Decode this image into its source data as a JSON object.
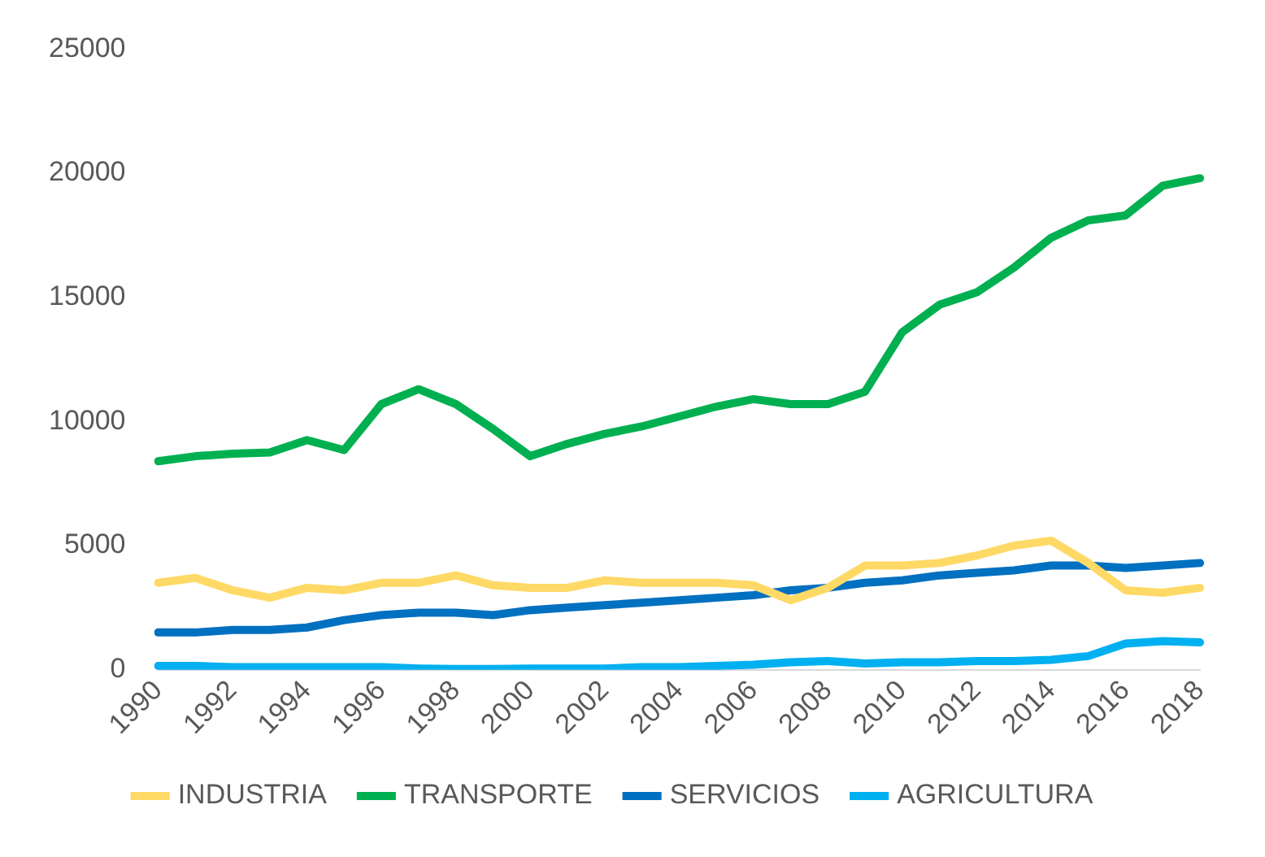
{
  "chart_data": {
    "type": "line",
    "categories": [
      "1990",
      null,
      "1992",
      null,
      "1994",
      null,
      "1996",
      null,
      "1998",
      null,
      "2000",
      null,
      "2002",
      null,
      "2004",
      null,
      "2006",
      null,
      "2008",
      null,
      "2010",
      null,
      "2012",
      null,
      "2014",
      null,
      "2016",
      null,
      "2018"
    ],
    "series": [
      {
        "name": "INDUSTRIA",
        "color": "#ffd966",
        "values": [
          3500,
          3700,
          3200,
          2900,
          3300,
          3200,
          3500,
          3500,
          3800,
          3400,
          3300,
          3300,
          3600,
          3500,
          3500,
          3500,
          3400,
          2800,
          3300,
          4200,
          4200,
          4300,
          4600,
          5000,
          5200,
          4300,
          3200,
          3100,
          3300
        ]
      },
      {
        "name": "TRANSPORTE",
        "color": "#00b050",
        "values": [
          8400,
          8600,
          8700,
          8750,
          9250,
          8850,
          10700,
          11300,
          10700,
          9700,
          8600,
          9100,
          9500,
          9800,
          10200,
          10600,
          10900,
          10700,
          10700,
          11200,
          13600,
          14700,
          15200,
          16200,
          17400,
          18100,
          18300,
          19500,
          19800
        ]
      },
      {
        "name": "SERVICIOS",
        "color": "#0070c0",
        "values": [
          1500,
          1500,
          1600,
          1600,
          1700,
          2000,
          2200,
          2300,
          2300,
          2200,
          2400,
          2500,
          2600,
          2700,
          2800,
          2900,
          3000,
          3200,
          3300,
          3500,
          3600,
          3800,
          3900,
          4000,
          4200,
          4200,
          4100,
          4200,
          4300
        ]
      },
      {
        "name": "AGRICULTURA",
        "color": "#00b0f0",
        "values": [
          150,
          150,
          100,
          100,
          100,
          100,
          100,
          50,
          30,
          30,
          50,
          50,
          50,
          100,
          100,
          150,
          200,
          300,
          350,
          250,
          300,
          300,
          350,
          350,
          400,
          550,
          1050,
          1150,
          1100
        ]
      }
    ],
    "ylim": [
      0,
      25000
    ],
    "yticks": [
      0,
      5000,
      10000,
      15000,
      20000,
      25000
    ],
    "grid": false,
    "legend": "bottom",
    "marker": "none",
    "line_style": "solid"
  }
}
